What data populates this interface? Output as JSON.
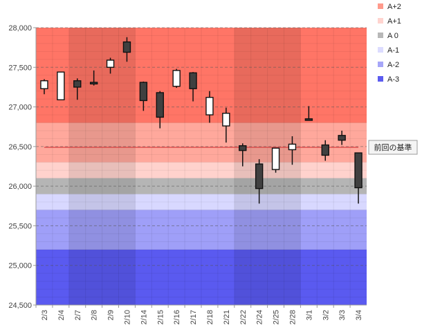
{
  "chart_data": {
    "type": "candlestick",
    "categories": [
      "2/3",
      "2/4",
      "2/7",
      "2/8",
      "2/9",
      "2/10",
      "2/14",
      "2/15",
      "2/16",
      "2/17",
      "2/18",
      "2/21",
      "2/22",
      "2/24",
      "2/25",
      "2/28",
      "3/1",
      "3/2",
      "3/3",
      "3/4"
    ],
    "ohlc": [
      {
        "open": 27230,
        "high": 27350,
        "low": 27160,
        "close": 27330
      },
      {
        "open": 27090,
        "high": 27440,
        "low": 27090,
        "close": 27440
      },
      {
        "open": 27330,
        "high": 27360,
        "low": 27090,
        "close": 27250
      },
      {
        "open": 27310,
        "high": 27460,
        "low": 27270,
        "close": 27290
      },
      {
        "open": 27500,
        "high": 27620,
        "low": 27420,
        "close": 27590
      },
      {
        "open": 27820,
        "high": 27880,
        "low": 27570,
        "close": 27690
      },
      {
        "open": 27310,
        "high": 27320,
        "low": 26950,
        "close": 27080
      },
      {
        "open": 27180,
        "high": 27200,
        "low": 26730,
        "close": 26870
      },
      {
        "open": 27260,
        "high": 27480,
        "low": 27240,
        "close": 27460
      },
      {
        "open": 27430,
        "high": 27440,
        "low": 27070,
        "close": 27230
      },
      {
        "open": 26900,
        "high": 27200,
        "low": 26800,
        "close": 27120
      },
      {
        "open": 26760,
        "high": 26990,
        "low": 26550,
        "close": 26920
      },
      {
        "open": 26510,
        "high": 26540,
        "low": 26250,
        "close": 26450
      },
      {
        "open": 26280,
        "high": 26340,
        "low": 25780,
        "close": 25970
      },
      {
        "open": 26210,
        "high": 26480,
        "low": 26170,
        "close": 26480
      },
      {
        "open": 26460,
        "high": 26630,
        "low": 26270,
        "close": 26530
      },
      {
        "open": 26850,
        "high": 27010,
        "low": 26830,
        "close": 26830
      },
      {
        "open": 26520,
        "high": 26580,
        "low": 26320,
        "close": 26390
      },
      {
        "open": 26640,
        "high": 26700,
        "low": 26520,
        "close": 26580
      },
      {
        "open": 26420,
        "high": 26420,
        "low": 25780,
        "close": 25980
      }
    ],
    "ylim": [
      24500,
      28000
    ],
    "yticks": [
      "24,500",
      "25,000",
      "25,500",
      "26,000",
      "26,500",
      "27,000",
      "27,500",
      "28,000"
    ],
    "ytick_values": [
      24500,
      25000,
      25500,
      26000,
      26500,
      27000,
      27500,
      28000
    ],
    "bands": [
      {
        "name": "A+2",
        "from": 26800,
        "to": 28000,
        "color": "#ff7566",
        "legend_color": "#ff9a8c"
      },
      {
        "name": "A+1",
        "from": 26300,
        "to": 26800,
        "color": "#ffa89c",
        "legend_color": "#ffd4cf"
      },
      {
        "name": "A+1",
        "from": 26100,
        "to": 26300,
        "color": "#ffd2cd",
        "legend_color": "#ffd4cf"
      },
      {
        "name": "A 0",
        "from": 25900,
        "to": 26100,
        "color": "#b5b5b5",
        "legend_color": "#b8b8b8"
      },
      {
        "name": "A-1",
        "from": 25700,
        "to": 25900,
        "color": "#d8d8ff",
        "legend_color": "#dcdcff"
      },
      {
        "name": "A-2",
        "from": 25200,
        "to": 25700,
        "color": "#9f9ff8",
        "legend_color": "#a6a6f8"
      },
      {
        "name": "A-3",
        "from": 24500,
        "to": 25200,
        "color": "#5a5af0",
        "legend_color": "#5c5cf0"
      }
    ],
    "legend": [
      "A+2",
      "A+1",
      "A 0",
      "A-1",
      "A-2",
      "A-3"
    ],
    "legend_colors": [
      "#ff9a8c",
      "#ffd4cf",
      "#b8b8b8",
      "#dcdcff",
      "#a6a6f8",
      "#5c5cf0"
    ],
    "shaded_weeks": [
      [
        2,
        5
      ],
      [
        12,
        15
      ]
    ],
    "reference_line": {
      "value": 26490,
      "label": "前回の基準",
      "color": "#d94040"
    },
    "colors": {
      "up_fill": "#ffffff",
      "down_fill": "#404040",
      "outline": "#111111"
    }
  }
}
